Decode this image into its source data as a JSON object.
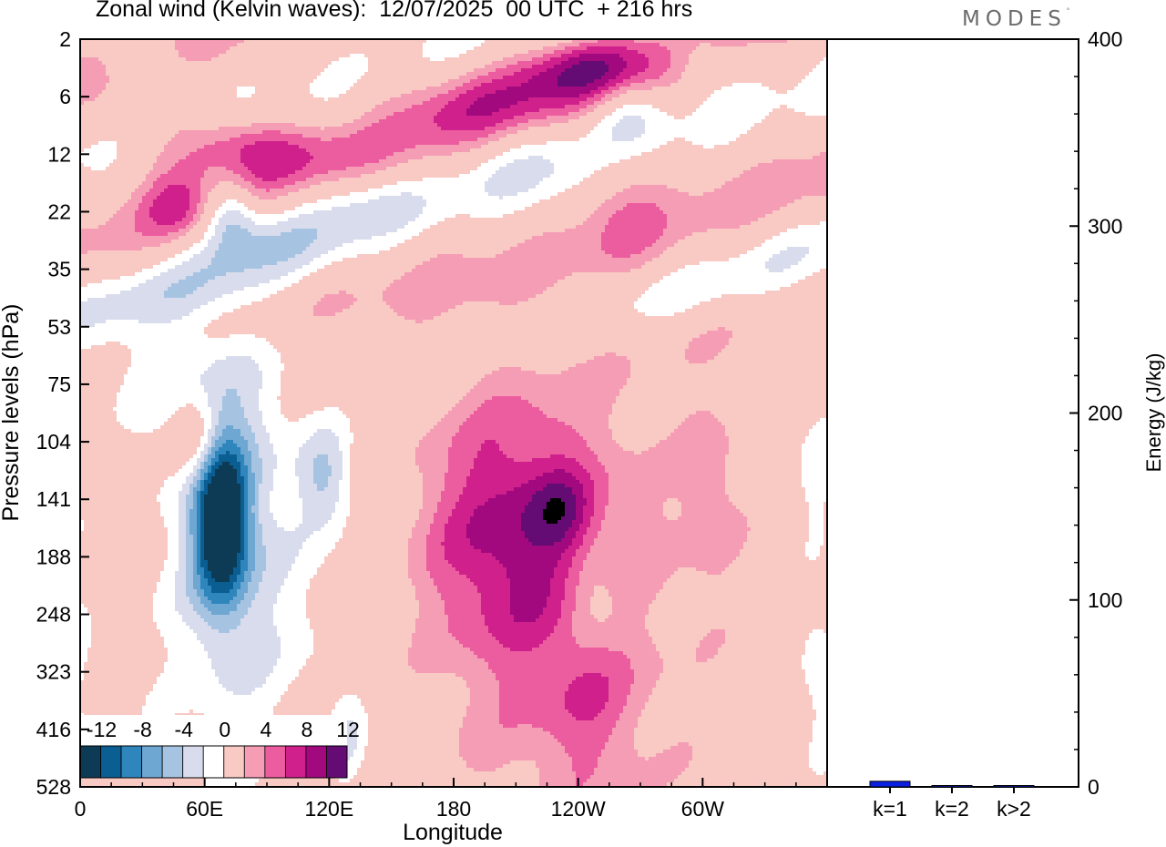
{
  "header": {
    "title": "Zonal wind (Kelvin waves):  12/07/2025  00 UTC  + 216 hrs",
    "brand": "MODES"
  },
  "colors": {
    "scale": [
      "#0d3b55",
      "#0b5e91",
      "#2f86bd",
      "#6ea7d2",
      "#a6c4e2",
      "#d8dcec",
      "#ffffff",
      "#f9c9c4",
      "#f59db4",
      "#ec5d9f",
      "#cf208c",
      "#a2097f",
      "#650b74"
    ],
    "bar": "#0b1fe0"
  },
  "chart_data": [
    {
      "type": "heatmap",
      "title": "Zonal wind (Kelvin waves):  12/07/2025  00 UTC  + 216 hrs",
      "xlabel": "Longitude",
      "ylabel": "Pressure levels (hPa)",
      "x_ticks": [
        "0",
        "60E",
        "120E",
        "180",
        "120W",
        "60W"
      ],
      "y_ticks": [
        "2",
        "6",
        "12",
        "22",
        "35",
        "53",
        "75",
        "104",
        "141",
        "188",
        "248",
        "323",
        "416",
        "528"
      ],
      "colorbar_labels": [
        "-12",
        "-8",
        "-4",
        "0",
        "4",
        "8",
        "12"
      ],
      "levels": [
        -14,
        -12,
        -10,
        -8,
        -6,
        -4,
        -2,
        2,
        4,
        6,
        8,
        10,
        12,
        14
      ],
      "features": [
        {
          "lon": 72,
          "level": 3.0,
          "sx": 9,
          "sy": 0.45,
          "tilt": 0,
          "amp": -6
        },
        {
          "lon": 26,
          "level": 0.3,
          "sx": 14,
          "sy": 0.35,
          "tilt": 0,
          "amp": -4
        },
        {
          "lon": 78,
          "level": 1.9,
          "sx": 32,
          "sy": 0.45,
          "tilt": 12,
          "amp": 7
        },
        {
          "lon": 46,
          "level": 2.9,
          "sx": 12,
          "sy": 0.45,
          "tilt": 0,
          "amp": 5
        },
        {
          "lon": 90,
          "level": 3.4,
          "sx": 30,
          "sy": 0.45,
          "tilt": -10,
          "amp": -2.6
        },
        {
          "lon": 130,
          "level": 2.7,
          "sx": 20,
          "sy": 0.4,
          "tilt": 0,
          "amp": -2.8
        },
        {
          "lon": 198,
          "level": 1.1,
          "sx": 40,
          "sy": 0.5,
          "tilt": 0,
          "amp": 5
        },
        {
          "lon": 244,
          "level": 0.5,
          "sx": 26,
          "sy": 0.4,
          "tilt": 0,
          "amp": 7
        },
        {
          "lon": 262,
          "level": 1.2,
          "sx": 12,
          "sy": 0.45,
          "tilt": 0,
          "amp": -4
        },
        {
          "lon": 298,
          "level": 0.3,
          "sx": 10,
          "sy": 0.4,
          "tilt": 0,
          "amp": -3
        },
        {
          "lon": 260,
          "level": 2.8,
          "sx": 14,
          "sy": 0.8,
          "tilt": 0,
          "amp": 3
        },
        {
          "lon": 226,
          "level": 2.0,
          "sx": 28,
          "sy": 1.1,
          "tilt": 0,
          "amp": -2.2
        },
        {
          "lon": 30,
          "level": 5.4,
          "sx": 28,
          "sy": 0.9,
          "tilt": 0,
          "amp": -2.6
        },
        {
          "lon": 57,
          "level": 7.0,
          "sx": 8,
          "sy": 0.55,
          "tilt": 0,
          "amp": 5
        },
        {
          "lon": 68,
          "level": 8.4,
          "sx": 9,
          "sy": 1.0,
          "tilt": 0,
          "amp": -14
        },
        {
          "lon": 72,
          "level": 8.0,
          "sx": 19,
          "sy": 2.3,
          "tilt": 0,
          "amp": -5
        },
        {
          "lon": 118,
          "level": 7.6,
          "sx": 9,
          "sy": 0.6,
          "tilt": 0,
          "amp": -5
        },
        {
          "lon": 100,
          "level": 10.0,
          "sx": 55,
          "sy": 3.0,
          "tilt": 0,
          "amp": -2.3
        },
        {
          "lon": 208,
          "level": 8.6,
          "sx": 30,
          "sy": 1.5,
          "tilt": 0,
          "amp": 7
        },
        {
          "lon": 232,
          "level": 8.2,
          "sx": 10,
          "sy": 0.5,
          "tilt": 0,
          "amp": 4
        },
        {
          "lon": 220,
          "level": 10.0,
          "sx": 56,
          "sy": 3.6,
          "tilt": 0,
          "amp": 3
        },
        {
          "lon": 244,
          "level": 11.6,
          "sx": 18,
          "sy": 1.0,
          "tilt": 0,
          "amp": 3
        },
        {
          "lon": 248,
          "level": 9.7,
          "sx": 11,
          "sy": 0.6,
          "tilt": 0,
          "amp": -3.5
        },
        {
          "lon": 304,
          "level": 7.9,
          "sx": 10,
          "sy": 1.1,
          "tilt": 0,
          "amp": 3
        },
        {
          "lon": 355,
          "level": 11.1,
          "sx": 7,
          "sy": 1.2,
          "tilt": 0,
          "amp": -3
        },
        {
          "lon": 355,
          "level": 7.6,
          "sx": 7,
          "sy": 0.8,
          "tilt": 0,
          "amp": -2.6
        },
        {
          "lon": 130,
          "level": 12.3,
          "sx": 6,
          "sy": 0.6,
          "tilt": 0,
          "amp": -3
        }
      ]
    },
    {
      "type": "bar",
      "categories": [
        "k=1",
        "k=2",
        "k>2"
      ],
      "values": [
        3,
        0.5,
        0.5
      ],
      "ylabel": "Energy (J/kg)",
      "ylim": [
        0,
        400
      ],
      "y_ticks": [
        "0",
        "100",
        "200",
        "300",
        "400"
      ]
    }
  ]
}
